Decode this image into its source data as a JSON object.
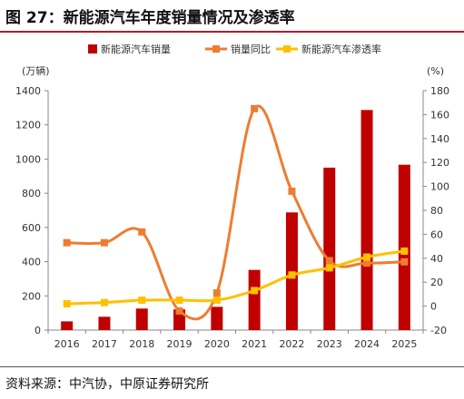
{
  "figure": {
    "title": "图 27：新能源汽车年度销量情况及渗透率",
    "source": "资料来源：中汽协，中原证券研究所"
  },
  "colors": {
    "bar": "#c00000",
    "yoy": "#ed7d31",
    "penetration": "#ffc000",
    "title_rule": "#b01d2a"
  },
  "chart_data": {
    "type": "bar",
    "categories": [
      "2016",
      "2017",
      "2018",
      "2019",
      "2020",
      "2021",
      "2022",
      "2023",
      "2024",
      "2025"
    ],
    "y_left": {
      "unit": "(万辆)",
      "ylim": [
        0,
        1400
      ],
      "ticks": [
        0,
        200,
        400,
        600,
        800,
        1000,
        1200,
        1400
      ]
    },
    "y_right": {
      "unit": "(%)",
      "ylim": [
        -20,
        180
      ],
      "ticks": [
        -20,
        0,
        20,
        40,
        60,
        80,
        100,
        120,
        140,
        160,
        180
      ]
    },
    "legend_position": "top",
    "grid": false,
    "series": [
      {
        "name": "新能源汽车销量",
        "type": "bar",
        "axis": "left",
        "values": [
          51,
          78,
          126,
          121,
          136,
          352,
          688,
          950,
          1287,
          967
        ]
      },
      {
        "name": "销量同比",
        "type": "line",
        "smooth": true,
        "axis": "right",
        "values": [
          53,
          53,
          62,
          -4,
          11,
          165,
          96,
          38,
          36,
          37
        ]
      },
      {
        "name": "新能源汽车渗透率",
        "type": "line",
        "smooth": true,
        "axis": "right",
        "values": [
          2,
          3,
          5,
          5,
          5,
          13,
          26,
          32,
          41,
          46
        ]
      }
    ]
  }
}
